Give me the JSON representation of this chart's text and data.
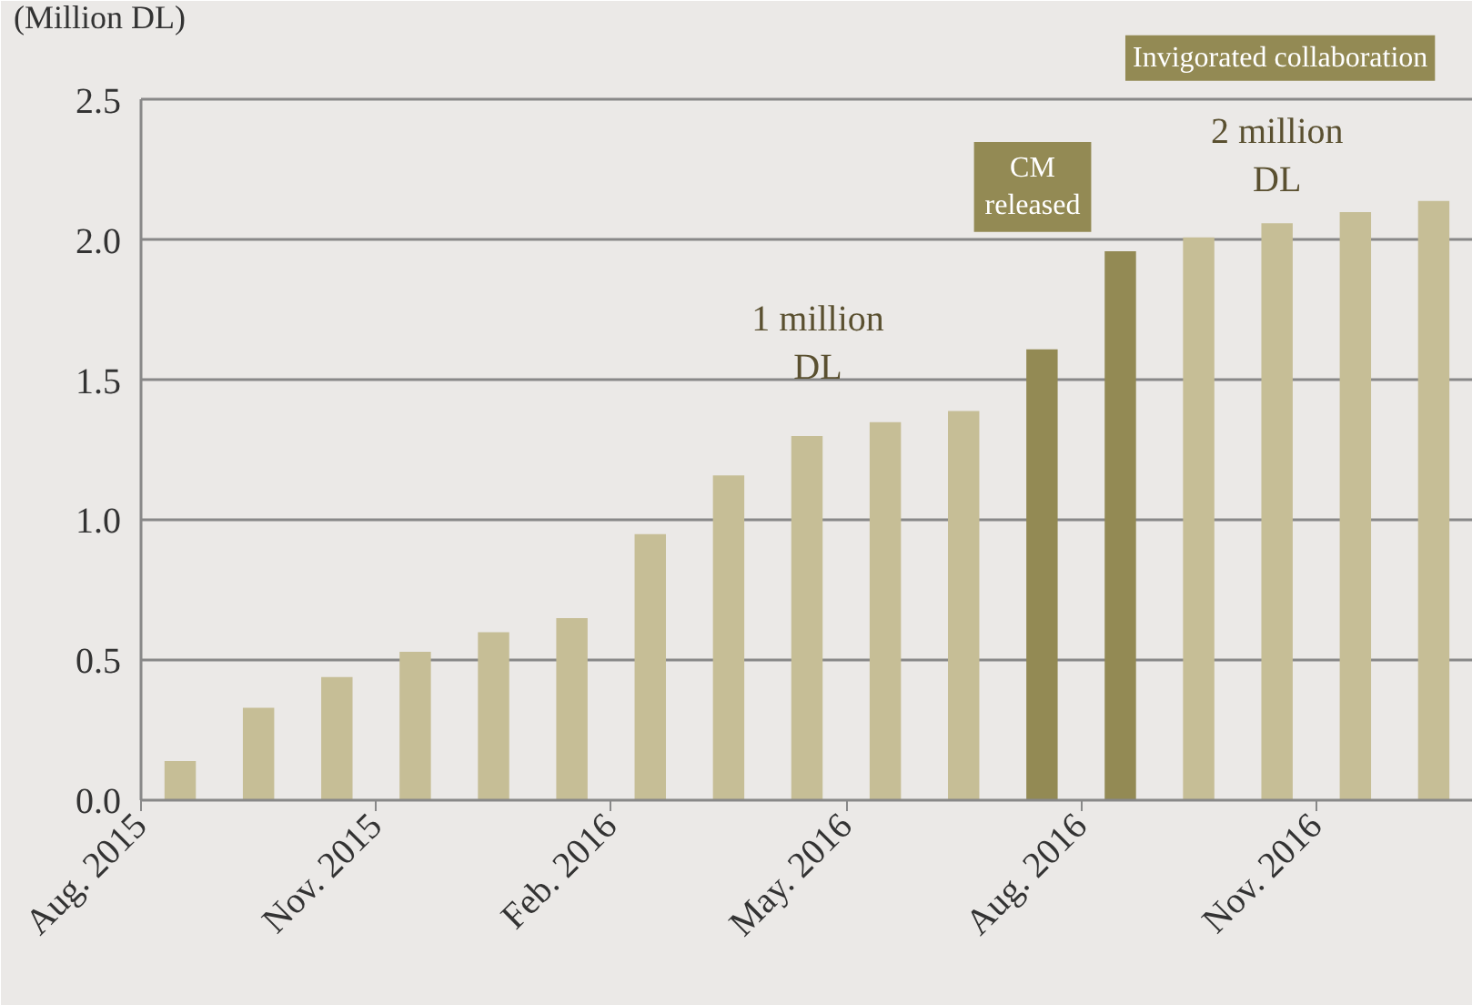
{
  "chart_data": {
    "type": "bar",
    "ylabel": "(Million DL)",
    "categories": [
      "Aug. 2015",
      null,
      null,
      "Nov. 2015",
      null,
      null,
      "Feb. 2016",
      null,
      null,
      "May. 2016",
      null,
      null,
      "Aug. 2016",
      null,
      null,
      "Nov. 2016",
      null
    ],
    "values": [
      0.14,
      0.33,
      0.44,
      0.53,
      0.6,
      0.65,
      0.95,
      1.16,
      1.3,
      1.35,
      1.39,
      1.61,
      1.96,
      2.01,
      2.06,
      2.1,
      2.14
    ],
    "colors": [
      "#c6be96",
      "#c6be96",
      "#c6be96",
      "#c6be96",
      "#c6be96",
      "#c6be96",
      "#c6be96",
      "#c6be96",
      "#c6be96",
      "#c6be96",
      "#c6be96",
      "#938a54",
      "#938a54",
      "#c6be96",
      "#c6be96",
      "#c6be96",
      "#c6be96"
    ],
    "ylim": [
      0,
      2.5
    ],
    "yticks": [
      {
        "value": 0,
        "label": "0.0"
      },
      {
        "value": 0.5,
        "label": "0.5"
      },
      {
        "value": 1,
        "label": "1.0"
      },
      {
        "value": 1.5,
        "label": "1.5"
      },
      {
        "value": 2,
        "label": "2.0"
      },
      {
        "value": 2.5,
        "label": "2.5"
      }
    ],
    "grid": "y",
    "annotations": [
      "1 million\nDL",
      "2 million\nDL",
      "CM\nreleased",
      "Invigorated collaboration"
    ]
  }
}
